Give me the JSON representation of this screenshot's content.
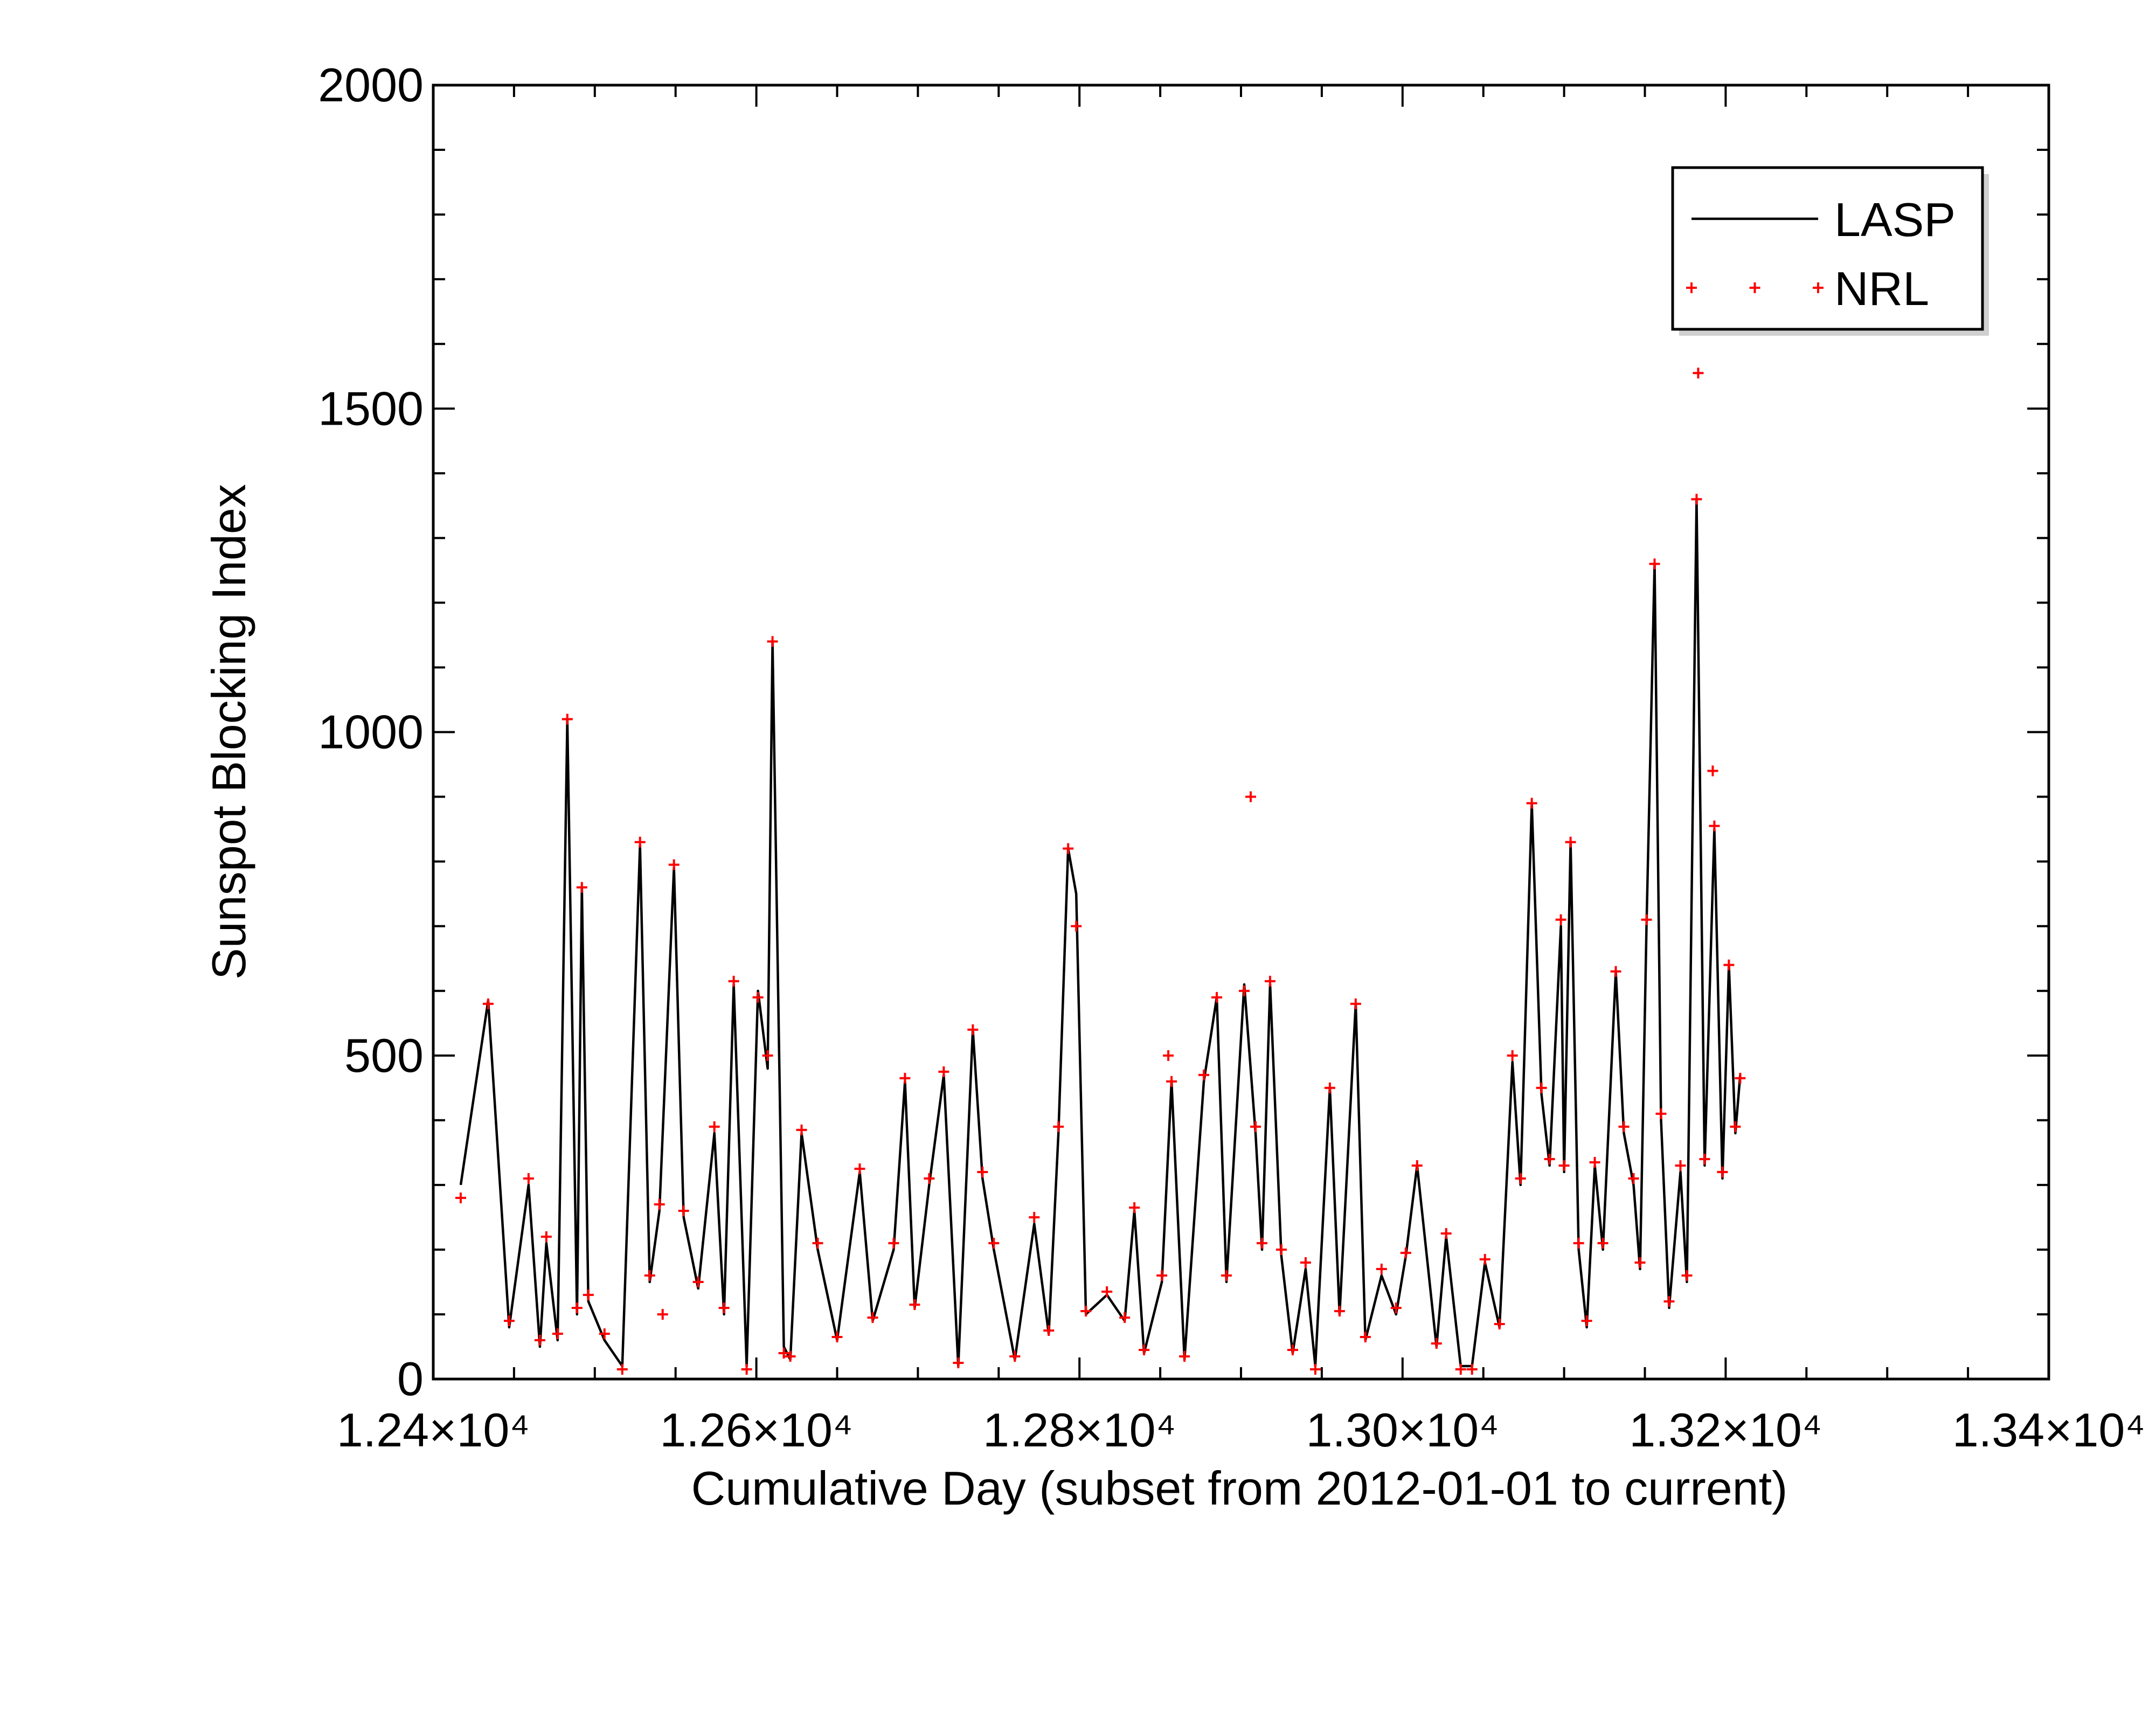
{
  "chart_data": {
    "type": "line",
    "x_label": "Cumulative Day (subset from 2012-01-01 to current)",
    "y_label": "Sunspot Blocking Index",
    "xlim": [
      12400,
      13400
    ],
    "ylim": [
      0,
      2000
    ],
    "xticks": [
      {
        "value": 12400,
        "label": "1.24×10⁴"
      },
      {
        "value": 12600,
        "label": "1.26×10⁴"
      },
      {
        "value": 12800,
        "label": "1.28×10⁴"
      },
      {
        "value": 13000,
        "label": "1.30×10⁴"
      },
      {
        "value": 13200,
        "label": "1.32×10⁴"
      },
      {
        "value": 13400,
        "label": "1.34×10⁴"
      }
    ],
    "xminor_ticks": [
      12450,
      12500,
      12550,
      12650,
      12700,
      12750,
      12850,
      12900,
      12950,
      13050,
      13100,
      13150,
      13250,
      13300,
      13350
    ],
    "yticks": [
      0,
      500,
      1000,
      1500,
      2000
    ],
    "yminor_ticks": [
      100,
      200,
      300,
      400,
      600,
      700,
      800,
      900,
      1100,
      1200,
      1300,
      1400,
      1600,
      1700,
      1800,
      1900
    ],
    "legend": "top right",
    "series": [
      {
        "name": "LASP",
        "color": "#000000",
        "style": "line",
        "x": [
          12417,
          12434,
          12447,
          12459,
          12466,
          12470,
          12477,
          12483,
          12489,
          12492,
          12496,
          12506,
          12517,
          12528,
          12534,
          12540,
          12549,
          12555,
          12564,
          12574,
          12580,
          12586,
          12594,
          12601,
          12607,
          12610,
          12617,
          12621,
          12628,
          12638,
          12650,
          12664,
          12672,
          12685,
          12692,
          12698,
          12707,
          12716,
          12725,
          12734,
          12740,
          12747,
          12760,
          12772,
          12781,
          12787,
          12793,
          12798,
          12804,
          12817,
          12828,
          12834,
          12840,
          12851,
          12857,
          12865,
          12877,
          12885,
          12891,
          12902,
          12909,
          12913,
          12918,
          12925,
          12932,
          12940,
          12946,
          12955,
          12961,
          12971,
          12977,
          12987,
          12996,
          13002,
          13009,
          13021,
          13027,
          13036,
          13043,
          13051,
          13060,
          13068,
          13073,
          13080,
          13086,
          13091,
          13098,
          13100,
          13104,
          13109,
          13114,
          13119,
          13124,
          13132,
          13137,
          13143,
          13147,
          13151,
          13156,
          13160,
          13165,
          13172,
          13176,
          13182,
          13187,
          13193,
          13198,
          13202,
          13206,
          13209
        ],
        "values": [
          300,
          585,
          80,
          300,
          50,
          210,
          60,
          1020,
          100,
          760,
          120,
          60,
          20,
          825,
          150,
          260,
          790,
          250,
          140,
          380,
          100,
          610,
          20,
          600,
          480,
          1140,
          50,
          30,
          380,
          200,
          60,
          320,
          90,
          200,
          460,
          110,
          300,
          470,
          20,
          540,
          310,
          200,
          30,
          240,
          70,
          380,
          820,
          750,
          100,
          130,
          90,
          260,
          40,
          150,
          460,
          30,
          460,
          590,
          150,
          610,
          380,
          200,
          610,
          190,
          40,
          170,
          20,
          450,
          100,
          580,
          60,
          160,
          100,
          190,
          330,
          50,
          220,
          20,
          20,
          180,
          80,
          490,
          300,
          890,
          440,
          330,
          700,
          320,
          830,
          200,
          80,
          330,
          200,
          630,
          380,
          300,
          170,
          700,
          1260,
          400,
          110,
          320,
          150,
          1360,
          330,
          850,
          310,
          640,
          380,
          470
        ]
      },
      {
        "name": "NRL",
        "color": "#ff0000",
        "style": "plus",
        "x": [
          12417,
          12434,
          12447,
          12459,
          12466,
          12470,
          12477,
          12483,
          12489,
          12492,
          12496,
          12506,
          12517,
          12528,
          12534,
          12540,
          12549,
          12555,
          12564,
          12574,
          12580,
          12586,
          12594,
          12601,
          12607,
          12610,
          12617,
          12621,
          12628,
          12638,
          12650,
          12664,
          12672,
          12685,
          12692,
          12698,
          12707,
          12716,
          12725,
          12734,
          12740,
          12747,
          12760,
          12772,
          12781,
          12787,
          12793,
          12798,
          12804,
          12817,
          12828,
          12834,
          12840,
          12851,
          12857,
          12865,
          12877,
          12885,
          12891,
          12902,
          12909,
          12913,
          12918,
          12925,
          12932,
          12940,
          12946,
          12955,
          12961,
          12971,
          12977,
          12987,
          12996,
          13002,
          13009,
          13021,
          13027,
          13036,
          13043,
          13051,
          13060,
          13068,
          13073,
          13080,
          13086,
          13091,
          13098,
          13100,
          13104,
          13109,
          13114,
          13119,
          13124,
          13132,
          13137,
          13143,
          13147,
          13151,
          13156,
          13160,
          13165,
          13172,
          13176,
          13182,
          13187,
          13193,
          13198,
          13202,
          13206,
          13209,
          12542,
          12855,
          12906,
          13183,
          13192
        ],
        "values": [
          280,
          580,
          90,
          310,
          60,
          220,
          70,
          1020,
          110,
          760,
          130,
          70,
          15,
          830,
          160,
          270,
          795,
          260,
          150,
          390,
          110,
          615,
          15,
          590,
          500,
          1140,
          40,
          35,
          385,
          210,
          65,
          325,
          95,
          210,
          465,
          115,
          310,
          475,
          25,
          540,
          320,
          210,
          35,
          250,
          75,
          390,
          820,
          700,
          105,
          135,
          95,
          265,
          45,
          160,
          460,
          35,
          470,
          590,
          160,
          600,
          390,
          210,
          615,
          200,
          45,
          180,
          15,
          450,
          105,
          580,
          65,
          170,
          110,
          195,
          330,
          55,
          225,
          15,
          15,
          185,
          85,
          500,
          310,
          890,
          450,
          340,
          710,
          330,
          830,
          210,
          90,
          335,
          210,
          630,
          390,
          310,
          180,
          710,
          1260,
          410,
          120,
          330,
          160,
          1360,
          340,
          855,
          320,
          640,
          390,
          465,
          100,
          500,
          900,
          1555,
          940
        ]
      }
    ]
  }
}
